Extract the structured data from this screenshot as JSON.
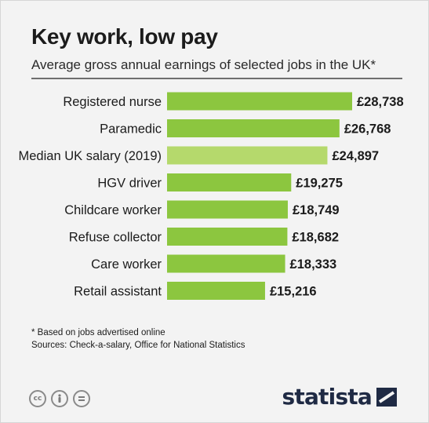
{
  "header": {
    "title": "Key work, low pay",
    "subtitle": "Average gross annual earnings of selected  jobs in the UK*"
  },
  "footer": {
    "footnote": "* Based on jobs advertised online",
    "sources": "Sources: Check-a-salary, Office for National Statistics",
    "license_icons": [
      "cc-icon",
      "by-person-icon",
      "nd-equals-icon"
    ],
    "logo_text": "statista"
  },
  "chart_data": {
    "type": "bar",
    "orientation": "horizontal",
    "title": "Key work, low pay",
    "subtitle": "Average gross annual earnings of selected  jobs in the UK*",
    "unit": "£",
    "categories": [
      "Registered nurse",
      "Paramedic",
      "Median UK salary (2019)",
      "HGV driver",
      "Childcare worker",
      "Refuse collector",
      "Care worker",
      "Retail assistant"
    ],
    "values": [
      28738,
      26768,
      24897,
      19275,
      18749,
      18682,
      18333,
      15216
    ],
    "value_labels": [
      "£28,738",
      "£26,768",
      "£24,897",
      "£19,275",
      "£18,749",
      "£18,682",
      "£18,333",
      "£15,216"
    ],
    "highlight_index": 2,
    "colors": {
      "bar": "#8cc63f",
      "highlight": "#b5d96c"
    },
    "xlabel": "",
    "ylabel": "",
    "grid": false,
    "legend": "none"
  }
}
